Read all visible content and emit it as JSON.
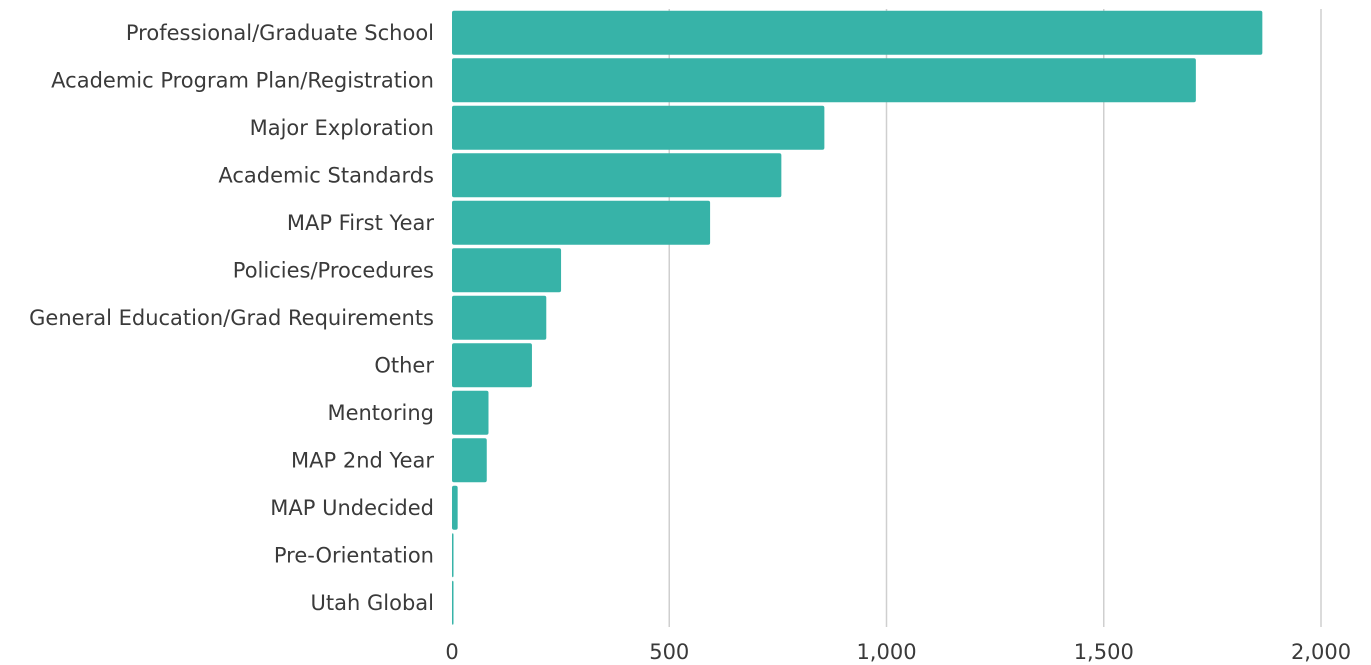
{
  "chart_data": {
    "type": "bar",
    "orientation": "horizontal",
    "title": "",
    "xlabel": "",
    "ylabel": "",
    "categories": [
      "Professional/Graduate School",
      "Academic Program Plan/Registration",
      "Major Exploration",
      "Academic Standards",
      "MAP First Year",
      "Policies/Procedures",
      "General Education/Grad Requirements",
      "Other",
      "Mentoring",
      "MAP 2nd Year",
      "MAP Undecided",
      "Pre-Orientation",
      "Utah Global"
    ],
    "values": [
      1865,
      1712,
      857,
      758,
      594,
      251,
      217,
      184,
      84,
      80,
      13,
      3,
      3
    ],
    "xlim": [
      0,
      2000
    ],
    "x_ticks": [
      0,
      500,
      1000,
      1500,
      2000
    ],
    "x_tick_labels": [
      "0",
      "500",
      "1,000",
      "1,500",
      "2,000"
    ],
    "grid": true,
    "legend": "none",
    "bar_color": "#37b3a8",
    "grid_color": "#cfcfcf"
  }
}
